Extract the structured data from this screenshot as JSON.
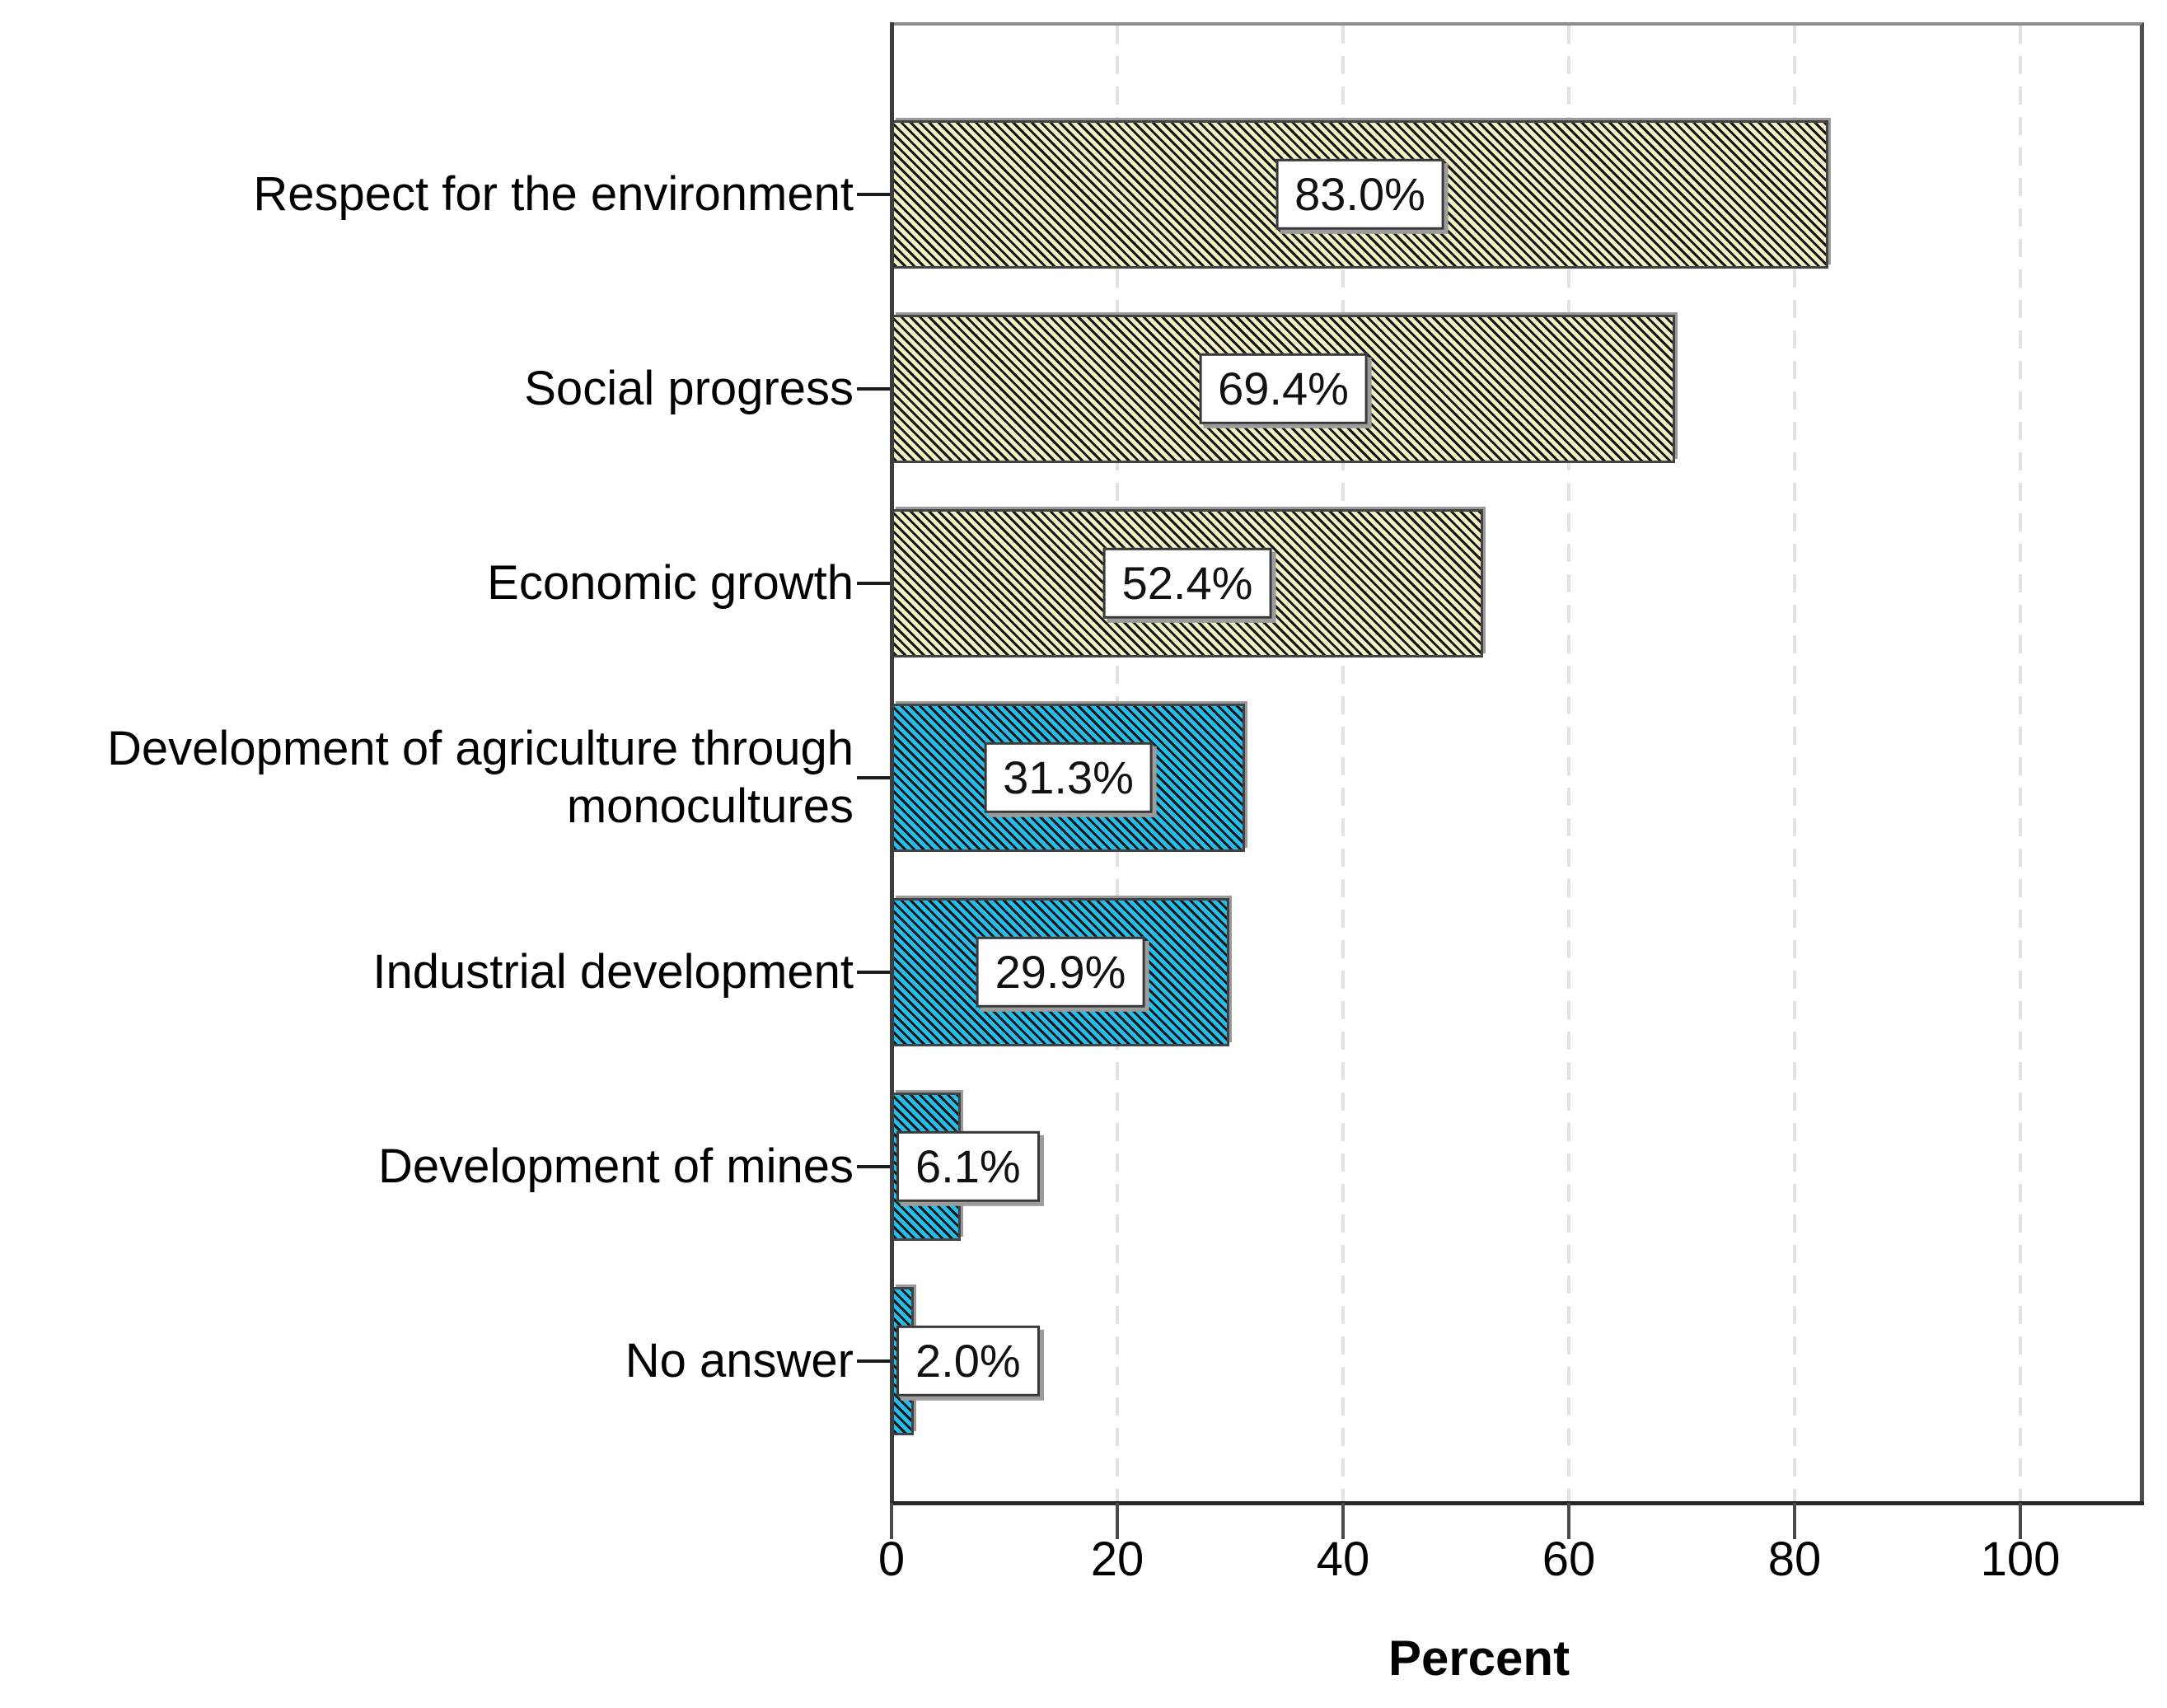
{
  "page": {
    "background": "#ffffff"
  },
  "chart_data": {
    "type": "bar",
    "orientation": "horizontal",
    "title": "",
    "xlabel": "Percent",
    "ylabel": "",
    "legend": "none",
    "grid": {
      "axis": "vertical",
      "style": "dashed",
      "at": [
        20,
        40,
        60,
        80,
        100
      ]
    },
    "x_axis": {
      "min": 0,
      "max_visible": 111,
      "ticks": [
        0,
        20,
        40,
        60,
        80,
        100
      ],
      "tick_labels": [
        "0",
        "20",
        "40",
        "60",
        "80",
        "100"
      ]
    },
    "categories": [
      "Respect for the environment",
      "Social progress",
      "Economic growth",
      "Development of agriculture through monocultures",
      "Industrial development",
      "Development of mines",
      "No answer"
    ],
    "values": [
      83.0,
      69.4,
      52.4,
      31.3,
      29.9,
      6.1,
      2.0
    ],
    "bars": [
      {
        "category": "Respect for the environment",
        "value": 83.0,
        "value_label": "83.0%",
        "color": "khaki"
      },
      {
        "category": "Social progress",
        "value": 69.4,
        "value_label": "69.4%",
        "color": "khaki"
      },
      {
        "category": "Economic growth",
        "value": 52.4,
        "value_label": "52.4%",
        "color": "khaki"
      },
      {
        "category": "Development of agriculture through\nmonocultures",
        "value": 31.3,
        "value_label": "31.3%",
        "color": "cyan"
      },
      {
        "category": "Industrial development",
        "value": 29.9,
        "value_label": "29.9%",
        "color": "cyan"
      },
      {
        "category": "Development of mines",
        "value": 6.1,
        "value_label": "6.1%",
        "color": "cyan"
      },
      {
        "category": "No answer",
        "value": 2.0,
        "value_label": "2.0%",
        "color": "cyan"
      }
    ],
    "colors": {
      "khaki_fill": "#F1EFC4",
      "cyan_fill": "#25BDE9",
      "hatch": "#141414",
      "bar_border": "#424242",
      "bar_shadow": "#9a9a9a",
      "label_box_bg": "#ffffff",
      "label_box_border": "#383838",
      "label_box_shadow": "#9c9c9c",
      "grid": "#e2e2e2",
      "frame_top": "#8c8c8c",
      "frame_right": "#4e4e4e",
      "y_axis": "#3d3d3d",
      "x_axis": "#272727",
      "text": "#000000"
    }
  }
}
